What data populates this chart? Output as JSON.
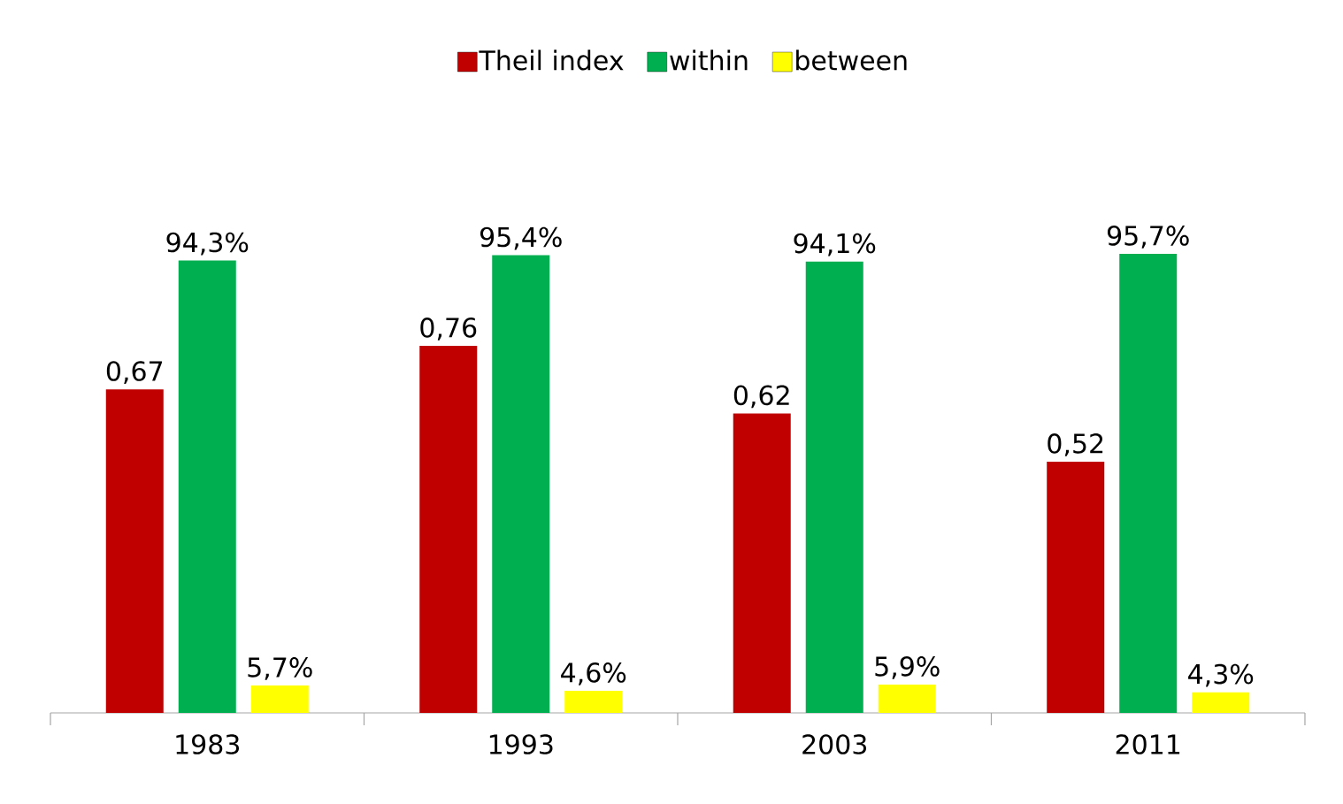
{
  "chart_data": {
    "type": "bar",
    "categories": [
      "1983",
      "1993",
      "2003",
      "2011"
    ],
    "series": [
      {
        "name": "Theil index",
        "color": "#c00000",
        "values": [
          0.67,
          0.76,
          0.62,
          0.52
        ],
        "value_labels": [
          "0,67",
          "0,76",
          "0,62",
          "0,52"
        ],
        "axis": "y2"
      },
      {
        "name": "within",
        "color": "#00b050",
        "values": [
          94.3,
          95.4,
          94.1,
          95.7
        ],
        "value_labels": [
          "94,3%",
          "95,4%",
          "94,1%",
          "95,7%"
        ]
      },
      {
        "name": "between",
        "color": "#ffff00",
        "values": [
          5.7,
          4.6,
          5.9,
          4.3
        ],
        "value_labels": [
          "5,7%",
          "4,6%",
          "5,9%",
          "4,3%"
        ]
      }
    ],
    "legend": "top"
  }
}
